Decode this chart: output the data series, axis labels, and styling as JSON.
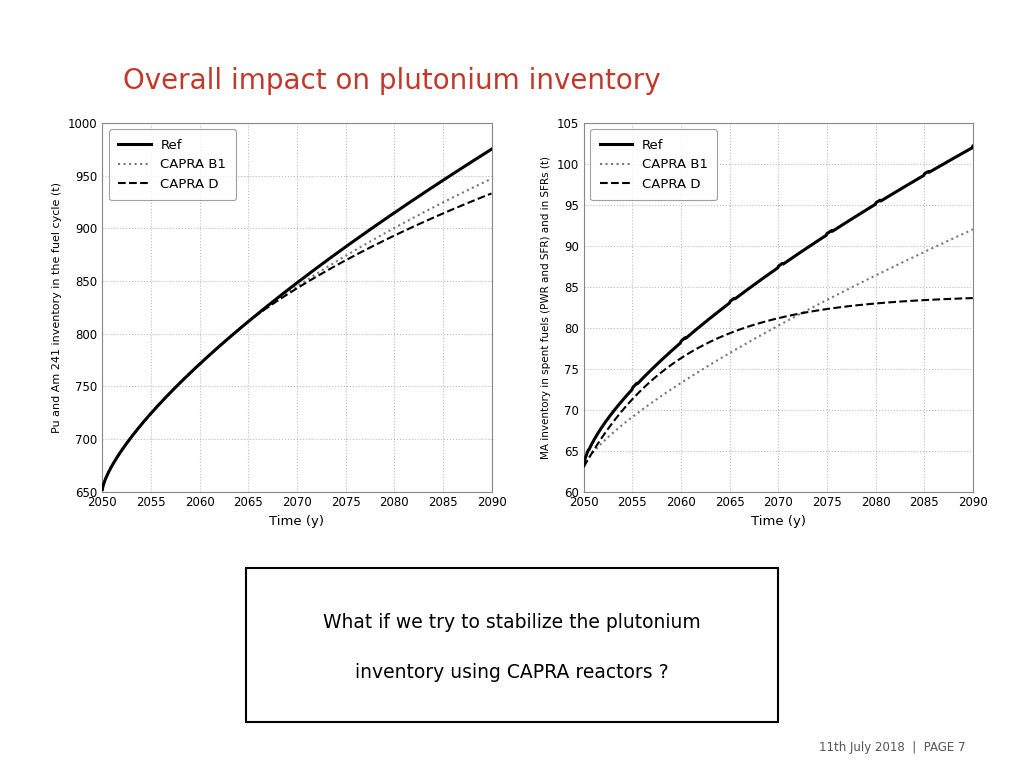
{
  "title": "Overall impact on plutonium inventory",
  "title_color": "#c0392b",
  "title_fontsize": 20,
  "background_color": "#ffffff",
  "header_color": "#c0392b",
  "footer_text": "11th July 2018  |  PAGE 7",
  "text_box_text_line1": "What if we try to stabilize the plutonium",
  "text_box_text_line2": "inventory using CAPRA reactors ?",
  "left_chart": {
    "ylabel": "Pu and Am 241 inventory in the fuel cycle (t)",
    "xlabel": "Time (y)",
    "xlim": [
      2050,
      2090
    ],
    "ylim": [
      650,
      1000
    ],
    "yticks": [
      650,
      700,
      750,
      800,
      850,
      900,
      950,
      1000
    ],
    "xticks": [
      2050,
      2055,
      2060,
      2065,
      2070,
      2075,
      2080,
      2085,
      2090
    ]
  },
  "right_chart": {
    "ylabel": "MA inventory in spent fuels (PWR and SFR) and in SFRs (t)",
    "xlabel": "Time (y)",
    "xlim": [
      2050,
      2090
    ],
    "ylim": [
      60,
      105
    ],
    "yticks": [
      60,
      65,
      70,
      75,
      80,
      85,
      90,
      95,
      100,
      105
    ],
    "xticks": [
      2050,
      2055,
      2060,
      2065,
      2070,
      2075,
      2080,
      2085,
      2090
    ]
  }
}
